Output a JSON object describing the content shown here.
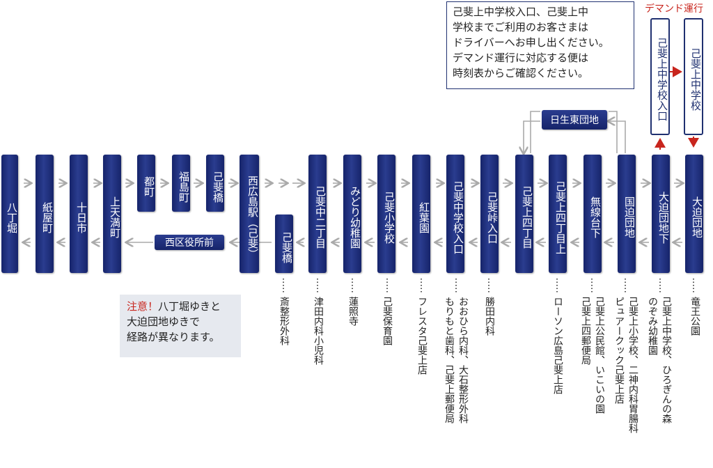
{
  "stops": [
    {
      "id": "hatchobori",
      "label": "八丁堀"
    },
    {
      "id": "kamiyacho",
      "label": "紙屋町"
    },
    {
      "id": "tokaichi",
      "label": "十日市"
    },
    {
      "id": "kamitenmacho",
      "label": "上天満町"
    },
    {
      "id": "miyako",
      "label": "都町"
    },
    {
      "id": "fukushimacho",
      "label": "福島町"
    },
    {
      "id": "koihashi",
      "label": "己斐橋"
    },
    {
      "id": "nishihiroshima",
      "label": "西広島駅（己斐）"
    },
    {
      "id": "koinaka2",
      "label": "己斐中二丁目"
    },
    {
      "id": "midori",
      "label": "みどり幼稚園"
    },
    {
      "id": "koisho",
      "label": "己斐小学校"
    },
    {
      "id": "koyoen",
      "label": "紅葉園"
    },
    {
      "id": "koichu",
      "label": "己斐中学校入口"
    },
    {
      "id": "koitoge",
      "label": "己斐峠入口"
    },
    {
      "id": "koiue4",
      "label": "己斐上四丁目"
    },
    {
      "id": "koiue4ue",
      "label": "己斐上四丁目上"
    },
    {
      "id": "musendai",
      "label": "無線台下"
    },
    {
      "id": "kunisako",
      "label": "国迫団地"
    },
    {
      "id": "osakoshita",
      "label": "大迫団地下"
    },
    {
      "id": "osako",
      "label": "大迫団地"
    }
  ],
  "return_stops": {
    "koihashi_return": "己斐橋",
    "nishiku": "西区役所前",
    "hinase": "日生東団地"
  },
  "demand": {
    "label": "デマンド運行",
    "stop_a": "己斐上中学校入口",
    "stop_b": "己斐上中学校"
  },
  "notice": {
    "lines": [
      "己斐上中学校入口、己斐上中",
      "学校までご利用のお客さまは",
      "ドライバーへお申し出ください。",
      "デマンド運行に対応する便は",
      "時刻表からご確認ください。"
    ]
  },
  "caution": {
    "prefix": "注意！",
    "line1": "八丁堀ゆきと",
    "line2": "大迫団地ゆきで",
    "line3": "経路が異なります。"
  },
  "landmarks": {
    "koihashi": "斎整形外科",
    "koinaka2": "津田内科小児科",
    "midori": "蓮照寺",
    "koisho": "己斐保育園",
    "koyoen": "フレスタ己斐上店",
    "koichu_a": "おおひら内科、大石整形外科",
    "koichu_b": "もりもと歯科、己斐上郵便局",
    "koitoge": "勝田内科",
    "koiue4ue": "ローソン広島己斐上店",
    "musendai_a": "己斐上公民館、いこいの園",
    "musendai_b": "己斐上四郵便局",
    "kunisako_a": "ピュアークック己斐上店",
    "kunisako_b": "己斐上小学校、二神内科胃腸科",
    "osakoshita_a": "己斐上中学校、ひろぎんの森",
    "osakoshita_b": "のぞみ幼稚園",
    "osako": "竜王公園"
  },
  "colors": {
    "stop": "#1c2b78",
    "arrow": "#b9b9b9",
    "demand": "#c8251d"
  }
}
